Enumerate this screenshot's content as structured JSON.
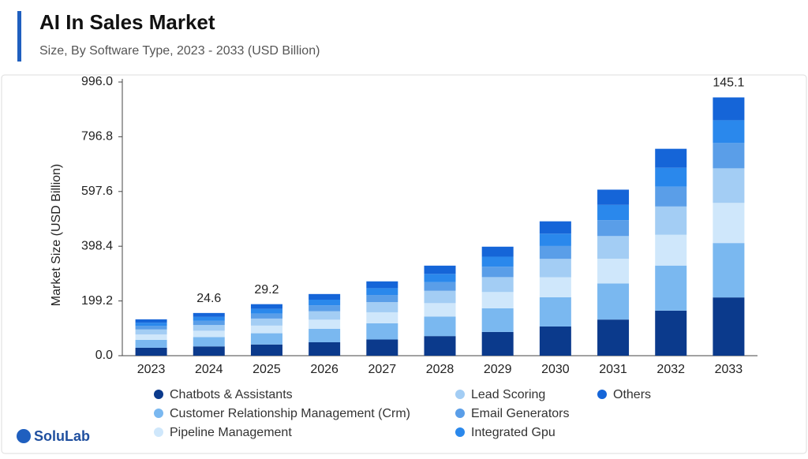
{
  "chart_data": {
    "type": "stacked_bar",
    "title": "AI In Sales Market",
    "subtitle": "Size, By Software Type, 2023 - 2033 (USD Billion)",
    "y_label": "Market Size (USD Billion)",
    "logo": "SoluLab",
    "categories": [
      "2023",
      "2024",
      "2025",
      "2026",
      "2027",
      "2028",
      "2029",
      "2030",
      "2031",
      "2032",
      "2033"
    ],
    "series": [
      {
        "name": "Chatbots & Assistants",
        "color": "#0b3a8c",
        "values": [
          28.8,
          33.8,
          40.8,
          48.8,
          58.9,
          71.3,
          86.3,
          106.4,
          131.5,
          164,
          212
        ]
      },
      {
        "name": "Customer Relationship Management (Crm)",
        "color": "#7ab8f0",
        "values": [
          28.8,
          33.8,
          40.8,
          48.8,
          58.9,
          71.3,
          86.3,
          106.4,
          131.5,
          164,
          198
        ]
      },
      {
        "name": "Pipeline Management",
        "color": "#cfe7fb",
        "values": [
          19.7,
          23.1,
          27.9,
          33.4,
          40.2,
          48.7,
          59.0,
          72.7,
          89.8,
          112,
          146
        ]
      },
      {
        "name": "Lead Scoring",
        "color": "#a3cdf4",
        "values": [
          18.1,
          21.2,
          25.6,
          30.7,
          37.0,
          44.8,
          54.3,
          66.9,
          82.6,
          103,
          126
        ]
      },
      {
        "name": "Email Generators",
        "color": "#5a9ee8",
        "values": [
          12.7,
          14.9,
          18.0,
          21.5,
          25.9,
          31.4,
          38.0,
          46.8,
          57.9,
          72,
          92
        ]
      },
      {
        "name": "Integrated Gpu",
        "color": "#2a88ec",
        "values": [
          12.1,
          14.3,
          17.2,
          20.6,
          24.8,
          30.1,
          36.4,
          44.9,
          55.5,
          69,
          83
        ]
      },
      {
        "name": "Others",
        "color": "#1565d8",
        "values": [
          12.1,
          14.3,
          17.2,
          20.6,
          24.8,
          30.1,
          36.4,
          44.9,
          55.5,
          69,
          83
        ]
      }
    ],
    "annotations": [
      {
        "x": "2024",
        "text": "24.6"
      },
      {
        "x": "2025",
        "text": "29.2"
      },
      {
        "x": "2033",
        "text": "145.1"
      }
    ],
    "ylim": [
      0,
      996
    ],
    "yticks": [
      {
        "value": 0,
        "label": "0.0"
      },
      199.2,
      398.4,
      597.6,
      796.8,
      {
        "value": 996,
        "label": "996.0"
      }
    ],
    "grid": false
  }
}
